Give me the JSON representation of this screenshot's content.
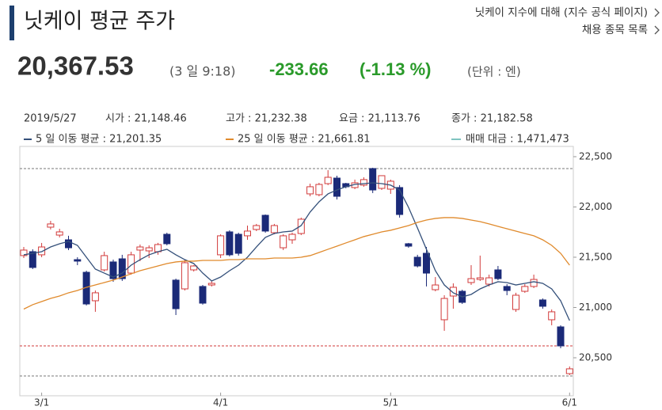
{
  "header": {
    "title": "닛케이 평균 주가",
    "links": [
      "닛케이 지수에 대해 (지수 공식 페이지)",
      "채용 종목 목록"
    ]
  },
  "quote": {
    "price": "20,367.53",
    "time": "(3 일 9:18)",
    "change": "-233.66",
    "change_pct": "(-1.13 %)",
    "unit": "(단위 : 엔)"
  },
  "info": {
    "date": "2019/5/27",
    "open": "시가 : 21,148.46",
    "high": "고가 : 21,232.38",
    "low": "요금 : 21,113.76",
    "close": "종가 : 21,182.58"
  },
  "chart_data": {
    "type": "candlestick",
    "categories": [
      null,
      null,
      "3/1",
      null,
      null,
      null,
      null,
      null,
      null,
      null,
      null,
      null,
      null,
      null,
      null,
      null,
      null,
      null,
      null,
      null,
      null,
      null,
      "4/1",
      null,
      null,
      null,
      null,
      null,
      null,
      null,
      null,
      null,
      null,
      null,
      null,
      null,
      null,
      null,
      null,
      null,
      null,
      "5/1",
      null,
      null,
      null,
      null,
      null,
      null,
      null,
      null,
      null,
      null,
      null,
      null,
      null,
      null,
      null,
      null,
      null,
      null,
      null,
      "6/1"
    ],
    "open": [
      21516,
      21555,
      21524,
      21799,
      21720,
      21673,
      21476,
      21350,
      21067,
      21374,
      21453,
      21484,
      21342,
      21571,
      21563,
      21555,
      21728,
      21272,
      21185,
      21374,
      21209,
      21224,
      21524,
      21752,
      21728,
      21713,
      21776,
      21917,
      21744,
      21594,
      21673,
      21736,
      22130,
      22122,
      22232,
      22287,
      22232,
      22193,
      22217,
      22382,
      22185,
      22177,
      22193,
      21634,
      21500,
      21539,
      21177,
      20878,
      21114,
      21161,
      21248,
      21279,
      21232,
      21374,
      21209,
      20980,
      21161,
      21209,
      21075,
      20878,
      20807,
      20342
    ],
    "high": [
      21602,
      21579,
      21642,
      21862,
      21783,
      21713,
      21500,
      21366,
      21169,
      21555,
      21476,
      21524,
      21555,
      21626,
      21618,
      21642,
      21744,
      21287,
      21476,
      21421,
      21224,
      21264,
      21728,
      21768,
      21744,
      21815,
      21831,
      21925,
      21831,
      21728,
      21744,
      21894,
      22232,
      22240,
      22366,
      22311,
      22240,
      22272,
      22295,
      22390,
      22311,
      22272,
      22217,
      21642,
      21524,
      21602,
      21303,
      21122,
      21240,
      21177,
      21421,
      21516,
      21327,
      21413,
      21232,
      21146,
      21232,
      21327,
      21090,
      20980,
      20823,
      20413
    ],
    "low": [
      21492,
      21382,
      21500,
      21776,
      21697,
      21571,
      21421,
      21020,
      20957,
      21358,
      21256,
      21264,
      21327,
      21461,
      21492,
      21524,
      21618,
      20925,
      21169,
      21358,
      21028,
      21209,
      21492,
      21508,
      21516,
      21673,
      21760,
      21744,
      21728,
      21571,
      21634,
      21720,
      22106,
      22106,
      22217,
      22075,
      22185,
      22177,
      22201,
      22138,
      22169,
      22130,
      21894,
      21594,
      21398,
      21209,
      21161,
      20768,
      20988,
      21035,
      21224,
      21264,
      21209,
      21272,
      21122,
      20957,
      21146,
      21193,
      20988,
      20823,
      20594,
      20327
    ],
    "close": [
      21571,
      21398,
      21602,
      21831,
      21752,
      21594,
      21461,
      21035,
      21146,
      21516,
      21287,
      21287,
      21524,
      21602,
      21594,
      21626,
      21634,
      20988,
      21445,
      21413,
      21043,
      21240,
      21713,
      21524,
      21539,
      21760,
      21815,
      21760,
      21815,
      21713,
      21728,
      21878,
      22201,
      22224,
      22295,
      22106,
      22201,
      22240,
      22272,
      22169,
      22311,
      22256,
      21925,
      21610,
      21413,
      21342,
      21224,
      21090,
      21201,
      21051,
      21287,
      21295,
      21295,
      21287,
      21169,
      21122,
      21209,
      21279,
      21012,
      20957,
      20618,
      20390
    ],
    "up_color": "#d23a3a",
    "down_color": "#1b2a78",
    "series": [
      {
        "name": "5 일 이동 평균 : 21,201.35",
        "color": "#34507a",
        "values": [
          21524,
          21539,
          21555,
          21602,
          21634,
          21657,
          21618,
          21500,
          21382,
          21342,
          21303,
          21342,
          21421,
          21476,
          21524,
          21555,
          21579,
          21524,
          21476,
          21437,
          21342,
          21264,
          21303,
          21366,
          21421,
          21500,
          21602,
          21697,
          21736,
          21752,
          21760,
          21815,
          21949,
          22051,
          22130,
          22169,
          22201,
          22224,
          22232,
          22240,
          22232,
          22217,
          22169,
          21996,
          21791,
          21579,
          21366,
          21224,
          21146,
          21106,
          21130,
          21185,
          21224,
          21256,
          21248,
          21224,
          21240,
          21256,
          21240,
          21185,
          21067,
          20870
        ]
      },
      {
        "name": "25 일 이동 평균 : 21,661.81",
        "color": "#e08a2c",
        "values": [
          20984,
          21028,
          21059,
          21090,
          21114,
          21146,
          21169,
          21201,
          21224,
          21248,
          21272,
          21303,
          21335,
          21366,
          21390,
          21413,
          21437,
          21453,
          21461,
          21461,
          21468,
          21468,
          21468,
          21476,
          21476,
          21484,
          21484,
          21484,
          21492,
          21492,
          21492,
          21500,
          21516,
          21547,
          21579,
          21610,
          21642,
          21673,
          21705,
          21728,
          21752,
          21768,
          21791,
          21815,
          21846,
          21870,
          21886,
          21894,
          21894,
          21886,
          21870,
          21854,
          21831,
          21807,
          21783,
          21760,
          21736,
          21713,
          21673,
          21618,
          21539,
          21421
        ]
      }
    ],
    "legend_extra": {
      "name": "매매 대금 : 1,471,473",
      "color": "#7fc4c0"
    },
    "reference_lines": [
      {
        "value": 22382,
        "color": "#777777"
      },
      {
        "value": 20618,
        "color": "#d23a3a"
      },
      {
        "value": 20319,
        "color": "#777777"
      }
    ],
    "ylim": [
      20122,
      22602
    ],
    "yticks": [
      {
        "value": 20500,
        "label": "20,500"
      },
      {
        "value": 21000,
        "label": "21,000"
      },
      {
        "value": 21500,
        "label": "21,500"
      },
      {
        "value": 22000,
        "label": "22,000"
      },
      {
        "value": 22500,
        "label": "22,500"
      }
    ],
    "grid": false
  }
}
